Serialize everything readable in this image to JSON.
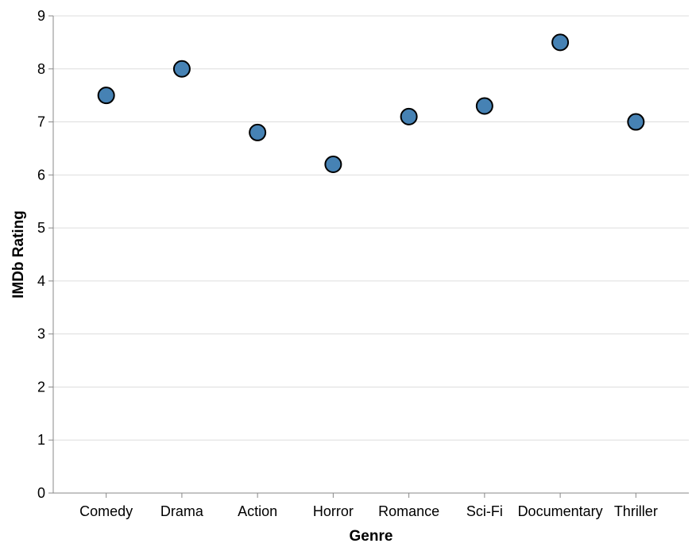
{
  "chart_data": {
    "type": "scatter",
    "categories": [
      "Comedy",
      "Drama",
      "Action",
      "Horror",
      "Romance",
      "Sci-Fi",
      "Documentary",
      "Thriller"
    ],
    "values": [
      7.5,
      8.0,
      6.8,
      6.2,
      7.1,
      7.3,
      8.5,
      7.0
    ],
    "xlabel": "Genre",
    "ylabel": "IMDb Rating",
    "ylim": [
      0,
      9
    ],
    "yticks": [
      0,
      1,
      2,
      3,
      4,
      5,
      6,
      7,
      8,
      9
    ],
    "grid": true,
    "point_color": "#4682b4"
  }
}
